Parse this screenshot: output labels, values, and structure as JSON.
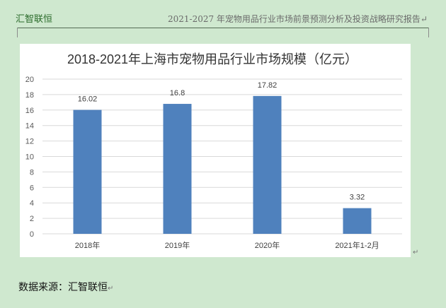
{
  "header": {
    "left": "汇智联恒",
    "right": "2021-2027 年宠物用品行业市场前景预测分析及投资战略研究报告↵"
  },
  "source": {
    "label": "数据来源：汇智联恒",
    "mark": "↵"
  },
  "paragraph_mark": "↵",
  "chart_data": {
    "type": "bar",
    "title": "2018-2021年上海市宠物用品行业市场规模（亿元）",
    "categories": [
      "2018年",
      "2019年",
      "2020年",
      "2021年1-2月"
    ],
    "values": [
      16.02,
      16.8,
      17.82,
      3.32
    ],
    "value_labels": [
      "16.02",
      "16.8",
      "17.82",
      "3.32"
    ],
    "ylim": [
      0,
      20
    ],
    "yticks": [
      0,
      2,
      4,
      6,
      8,
      10,
      12,
      14,
      16,
      18,
      20
    ],
    "grid": true,
    "legend": "none",
    "bar_color": "#4f81bd"
  }
}
